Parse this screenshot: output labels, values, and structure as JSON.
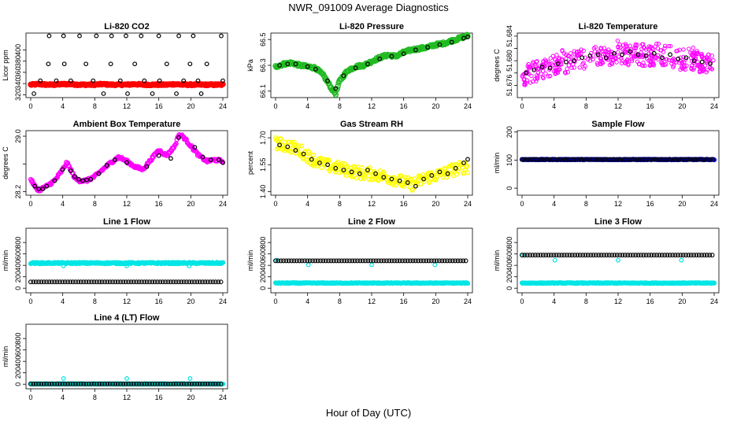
{
  "page": {
    "title": "NWR_091009  Average Diagnostics",
    "xlabel": "Hour of Day (UTC)"
  },
  "colors": {
    "black": "#000000",
    "red": "#ff0000",
    "green": "#22bb22",
    "magenta": "#ff00ff",
    "yellow": "#ffff00",
    "blue": "#0000ff",
    "cyan": "#00e5e5"
  },
  "chart_data": [
    {
      "type": "scatter",
      "title": "Li-820 CO2",
      "ylabel": "Licor ppm",
      "xlim": [
        0,
        24
      ],
      "ylim": [
        315,
        430
      ],
      "xticks": [
        0,
        4,
        8,
        12,
        16,
        20,
        24
      ],
      "yticks": [
        320,
        340,
        360,
        380,
        400
      ],
      "series": [
        {
          "color": "red",
          "style": "dense",
          "y": [
            338,
            339,
            338,
            338,
            339,
            339,
            338,
            338,
            338,
            339,
            338,
            338,
            338,
            339,
            338,
            338,
            338,
            338,
            339,
            338,
            338,
            338,
            338,
            338,
            338
          ],
          "jitter": 1.2
        },
        {
          "color": "black",
          "style": "points",
          "x": [
            0.4,
            1.2,
            2.2,
            2.3,
            3.2,
            4.1,
            4.2,
            5.0,
            6.1,
            6.9,
            7.8,
            8.2,
            9.1,
            10.0,
            10.1,
            11.2,
            11.9,
            12.1,
            13.0,
            13.8,
            14.2,
            15.2,
            16.0,
            16.1,
            17.0,
            18.2,
            18.5,
            19.1,
            19.9,
            20.3,
            20.9,
            21.3,
            22.0,
            23.8,
            24.0
          ],
          "y": [
            322,
            345,
            375,
            425,
            345,
            425,
            375,
            345,
            425,
            375,
            345,
            425,
            322,
            375,
            425,
            345,
            425,
            322,
            375,
            425,
            345,
            322,
            425,
            345,
            375,
            322,
            425,
            345,
            375,
            425,
            345,
            322,
            375,
            425,
            345
          ]
        }
      ]
    },
    {
      "type": "scatter",
      "title": "Li-820 Pressure",
      "ylabel": "kPa",
      "xlim": [
        0,
        24
      ],
      "ylim": [
        66.05,
        66.55
      ],
      "xticks": [
        0,
        4,
        8,
        12,
        16,
        20,
        24
      ],
      "yticks": [
        66.1,
        66.3,
        66.5
      ],
      "ytick_labels": [
        "66.1",
        "66.3",
        "66.5"
      ],
      "series": [
        {
          "color": "green",
          "style": "dense",
          "x": [
            0,
            1,
            2,
            3,
            4,
            5,
            6,
            7,
            7.5,
            8,
            9,
            10,
            11,
            12,
            13,
            14,
            15,
            16,
            17,
            18,
            19,
            20,
            21,
            22,
            23,
            24
          ],
          "y": [
            66.29,
            66.31,
            66.32,
            66.3,
            66.29,
            66.28,
            66.22,
            66.12,
            66.08,
            66.18,
            66.26,
            66.29,
            66.3,
            66.33,
            66.36,
            66.38,
            66.37,
            66.4,
            66.42,
            66.43,
            66.44,
            66.46,
            66.47,
            66.49,
            66.51,
            66.53
          ],
          "jitter": 0.01
        },
        {
          "color": "black",
          "style": "points",
          "x": [
            0.5,
            1.5,
            2.5,
            4,
            5,
            6.5,
            7.5,
            8.5,
            10,
            11.5,
            13,
            14.5,
            16,
            17.5,
            19,
            20.5,
            22,
            23.5,
            24
          ],
          "y": [
            66.3,
            66.31,
            66.31,
            66.29,
            66.27,
            66.18,
            66.12,
            66.22,
            66.28,
            66.31,
            66.35,
            66.37,
            66.39,
            66.42,
            66.44,
            66.46,
            66.48,
            66.51,
            66.52
          ]
        }
      ]
    },
    {
      "type": "scatter",
      "title": "Li-820 Temperature",
      "ylabel": "degrees C",
      "xlim": [
        0,
        24
      ],
      "ylim": [
        51.674,
        51.6845
      ],
      "xticks": [
        0,
        4,
        8,
        12,
        16,
        20,
        24
      ],
      "yticks": [
        51.676,
        51.678,
        51.68,
        51.682,
        51.684
      ],
      "ytick_labels": [
        "51.676",
        "",
        "51.680",
        "",
        "51.684"
      ],
      "series": [
        {
          "color": "magenta",
          "style": "open",
          "x": [
            0,
            1,
            2,
            3,
            4,
            5,
            6,
            7,
            8,
            9,
            10,
            11,
            12,
            13,
            14,
            15,
            16,
            17,
            18,
            19,
            20,
            21,
            22,
            23,
            24
          ],
          "y": [
            51.6775,
            51.678,
            51.6785,
            51.679,
            51.6795,
            51.68,
            51.6795,
            51.68,
            51.6805,
            51.681,
            51.6805,
            51.681,
            51.6815,
            51.681,
            51.681,
            51.681,
            51.6808,
            51.6812,
            51.681,
            51.6805,
            51.68,
            51.6805,
            51.68,
            51.6795,
            51.679
          ],
          "jitter": 0.0018
        },
        {
          "color": "black",
          "style": "points",
          "x": [
            0.5,
            1.5,
            2.5,
            3.5,
            4.5,
            5.5,
            6.5,
            7.5,
            8.5,
            9.5,
            10.5,
            11.5,
            12.5,
            13.5,
            14.5,
            15.5,
            16.5,
            17.5,
            18.5,
            19.5,
            20.5,
            21.5,
            22.5,
            23.5
          ],
          "y": [
            51.678,
            51.6785,
            51.679,
            51.6788,
            51.6795,
            51.6798,
            51.68,
            51.6805,
            51.6808,
            51.681,
            51.6805,
            51.6812,
            51.681,
            51.6815,
            51.681,
            51.6808,
            51.6812,
            51.6805,
            51.681,
            51.6803,
            51.6805,
            51.68,
            51.6798,
            51.6795
          ]
        }
      ]
    },
    {
      "type": "scatter",
      "title": "Ambient Box Temperature",
      "ylabel": "degrees C",
      "xlim": [
        0,
        24
      ],
      "ylim": [
        28.15,
        29.08
      ],
      "xticks": [
        0,
        4,
        8,
        12,
        16,
        20,
        24
      ],
      "yticks": [
        28.2,
        28.6,
        29.0
      ],
      "ytick_labels": [
        "28.2",
        "",
        "29.0"
      ],
      "series": [
        {
          "color": "magenta",
          "style": "dense",
          "x": [
            0,
            0.5,
            1,
            2,
            3,
            4,
            4.5,
            5,
            5.5,
            6,
            7,
            8,
            9,
            10,
            11,
            12,
            13,
            14,
            15,
            16,
            17,
            18,
            18.5,
            19,
            20,
            21,
            22,
            23,
            24
          ],
          "y": [
            28.38,
            28.28,
            28.22,
            28.28,
            28.36,
            28.52,
            28.62,
            28.52,
            28.4,
            28.36,
            28.36,
            28.42,
            28.52,
            28.62,
            28.7,
            28.64,
            28.56,
            28.52,
            28.66,
            28.8,
            28.72,
            28.86,
            29.02,
            29.0,
            28.86,
            28.72,
            28.64,
            28.66,
            28.64
          ],
          "jitter": 0.02
        },
        {
          "color": "black",
          "style": "points",
          "x": [
            0.5,
            1,
            1.5,
            2,
            3,
            4,
            5,
            5.5,
            6,
            6.5,
            7,
            7.5,
            8.5,
            9.5,
            10.5,
            12,
            14.5,
            16,
            17.5,
            18.5,
            20.5,
            21.5,
            22.5,
            23.5,
            24
          ],
          "y": [
            28.28,
            28.24,
            28.24,
            28.28,
            28.36,
            28.52,
            28.5,
            28.42,
            28.38,
            28.36,
            28.37,
            28.38,
            28.46,
            28.58,
            28.66,
            28.62,
            28.56,
            28.72,
            28.68,
            28.98,
            28.84,
            28.7,
            28.66,
            28.66,
            28.62
          ]
        }
      ]
    },
    {
      "type": "scatter",
      "title": "Gas Stream RH",
      "ylabel": "percent",
      "xlim": [
        0,
        24
      ],
      "ylim": [
        1.38,
        1.74
      ],
      "xticks": [
        0,
        4,
        8,
        12,
        16,
        20,
        24
      ],
      "yticks": [
        1.4,
        1.55,
        1.7
      ],
      "ytick_labels": [
        "1.40",
        "1.55",
        "1.70"
      ],
      "series": [
        {
          "color": "yellow",
          "style": "dense",
          "x": [
            0,
            1,
            2,
            3,
            4,
            5,
            6,
            7,
            8,
            9,
            10,
            11,
            12,
            13,
            14,
            15,
            16,
            17,
            18,
            19,
            20,
            21,
            22,
            23,
            24
          ],
          "y": [
            1.67,
            1.66,
            1.65,
            1.63,
            1.6,
            1.57,
            1.55,
            1.54,
            1.53,
            1.52,
            1.51,
            1.5,
            1.5,
            1.49,
            1.48,
            1.47,
            1.45,
            1.44,
            1.46,
            1.48,
            1.49,
            1.5,
            1.52,
            1.53,
            1.54
          ],
          "jitter": 0.035
        },
        {
          "color": "black",
          "style": "points",
          "x": [
            0.5,
            1.5,
            2.5,
            3.5,
            4.5,
            5.5,
            6.5,
            7.5,
            8.5,
            9.5,
            10.5,
            11.5,
            12.5,
            13.5,
            14.5,
            15.5,
            16.5,
            17.5,
            18.5,
            19.5,
            20.5,
            21.5,
            22.5,
            23.5,
            24
          ],
          "y": [
            1.66,
            1.65,
            1.63,
            1.61,
            1.58,
            1.56,
            1.55,
            1.53,
            1.52,
            1.51,
            1.5,
            1.52,
            1.5,
            1.48,
            1.47,
            1.46,
            1.45,
            1.43,
            1.47,
            1.49,
            1.51,
            1.5,
            1.53,
            1.56,
            1.58
          ]
        }
      ]
    },
    {
      "type": "scatter",
      "title": "Sample Flow",
      "ylabel": "ml/min",
      "xlim": [
        0,
        24
      ],
      "ylim": [
        -25,
        205
      ],
      "xticks": [
        0,
        4,
        8,
        12,
        16,
        20,
        24
      ],
      "yticks": [
        0,
        100,
        200
      ],
      "series": [
        {
          "color": "blue",
          "style": "dense",
          "y": [
            102
          ],
          "flat": true,
          "jitter": 1
        },
        {
          "color": "black",
          "style": "ring",
          "y": [
            102
          ],
          "flat": true,
          "step": 0.28
        }
      ]
    },
    {
      "type": "scatter",
      "title": "Line 1 Flow",
      "ylabel": "ml/min",
      "xlim": [
        0,
        24
      ],
      "ylim": [
        -80,
        1050
      ],
      "xticks": [
        0,
        4,
        8,
        12,
        16,
        20,
        24
      ],
      "yticks": [
        0,
        200,
        400,
        600,
        800
      ],
      "series": [
        {
          "color": "cyan",
          "style": "dense",
          "y": [
            440
          ],
          "flat": true,
          "jitter": 12
        },
        {
          "color": "cyan",
          "style": "points",
          "x": [
            4.1,
            12.0,
            19.8
          ],
          "y": [
            390,
            390,
            390
          ]
        },
        {
          "color": "black",
          "style": "ring",
          "y": [
            110
          ],
          "flat": true,
          "step": 0.33
        }
      ]
    },
    {
      "type": "scatter",
      "title": "Line 2 Flow",
      "ylabel": "ml/min",
      "xlim": [
        0,
        24
      ],
      "ylim": [
        -80,
        1050
      ],
      "xticks": [
        0,
        4,
        8,
        12,
        16,
        20,
        24
      ],
      "yticks": [
        0,
        200,
        400,
        600,
        800
      ],
      "series": [
        {
          "color": "cyan",
          "style": "dense",
          "y": [
            90
          ],
          "flat": true,
          "jitter": 6
        },
        {
          "color": "cyan",
          "style": "points",
          "x": [
            0.1,
            4.1,
            12.0,
            19.9
          ],
          "y": [
            490,
            410,
            410,
            410
          ]
        },
        {
          "color": "black",
          "style": "ring",
          "y": [
            480
          ],
          "flat": true,
          "step": 0.33
        }
      ]
    },
    {
      "type": "scatter",
      "title": "Line 3 Flow",
      "ylabel": "ml/min",
      "xlim": [
        0,
        24
      ],
      "ylim": [
        -80,
        1050
      ],
      "xticks": [
        0,
        4,
        8,
        12,
        16,
        20,
        24
      ],
      "yticks": [
        0,
        200,
        400,
        600,
        800
      ],
      "series": [
        {
          "color": "cyan",
          "style": "dense",
          "y": [
            90
          ],
          "flat": true,
          "jitter": 6
        },
        {
          "color": "cyan",
          "style": "points",
          "x": [
            0.1,
            4.1,
            12.0,
            19.9
          ],
          "y": [
            580,
            490,
            490,
            490
          ]
        },
        {
          "color": "black",
          "style": "ring",
          "y": [
            580
          ],
          "flat": true,
          "step": 0.33
        }
      ]
    },
    {
      "type": "scatter",
      "title": "Line 4 (LT) Flow",
      "ylabel": "ml/min",
      "xlim": [
        0,
        24
      ],
      "ylim": [
        -80,
        1050
      ],
      "xticks": [
        0,
        4,
        8,
        12,
        16,
        20,
        24
      ],
      "yticks": [
        0,
        200,
        400,
        600,
        800
      ],
      "series": [
        {
          "color": "cyan",
          "style": "dense",
          "y": [
            5
          ],
          "flat": true,
          "jitter": 4
        },
        {
          "color": "cyan",
          "style": "points",
          "x": [
            0.1,
            4.1,
            12.0,
            19.9
          ],
          "y": [
            10,
            100,
            100,
            100
          ]
        },
        {
          "color": "black",
          "style": "ring",
          "y": [
            5
          ],
          "flat": true,
          "step": 0.33
        }
      ]
    }
  ]
}
